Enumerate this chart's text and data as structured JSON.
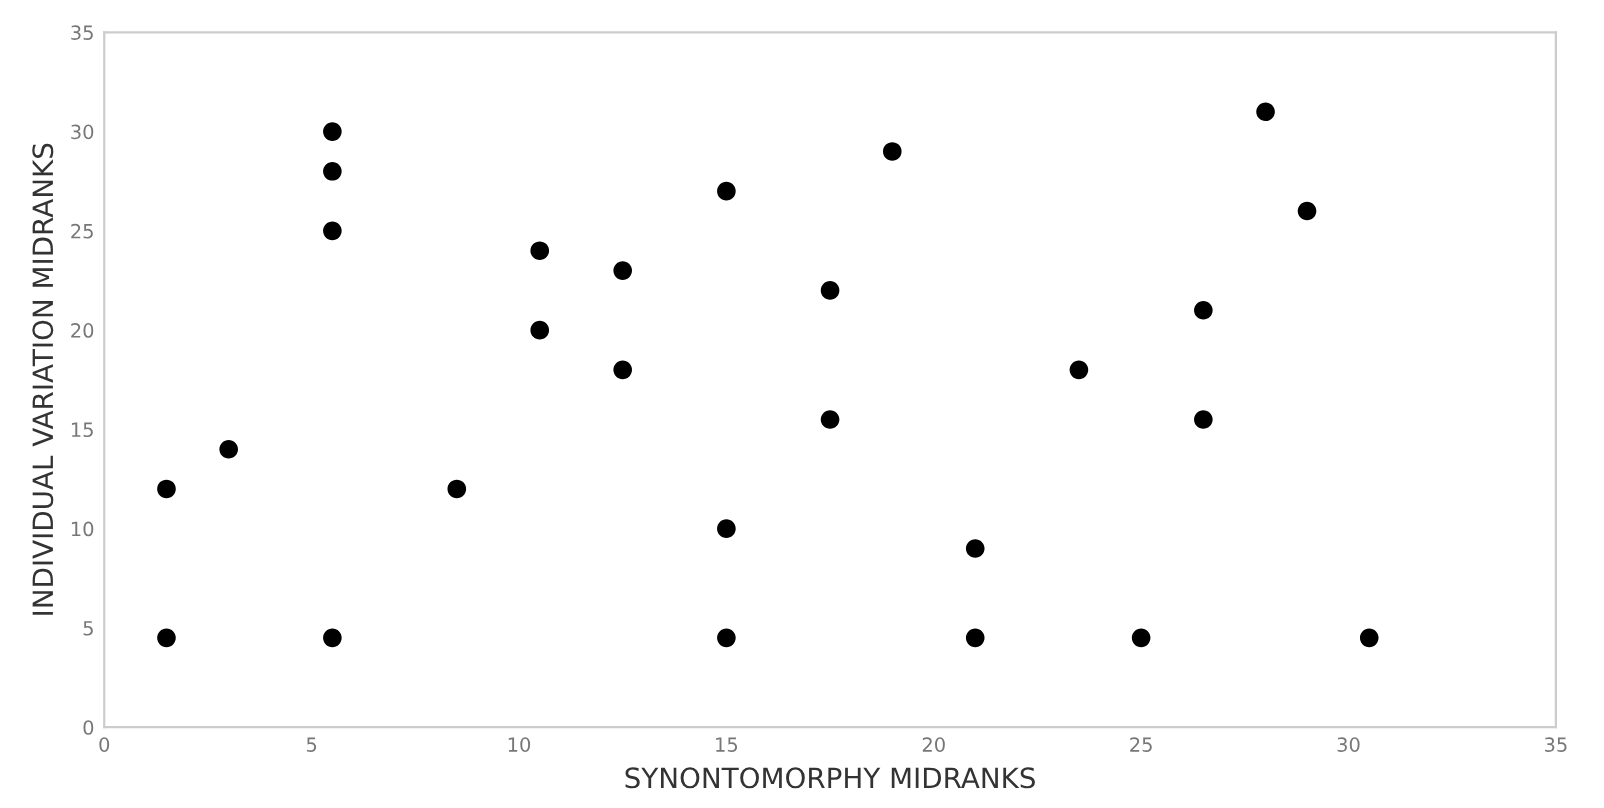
{
  "chart_data": {
    "type": "scatter",
    "xlabel": "SYNONTOMORPHY MIDRANKS",
    "ylabel": "INDIVIDUAL VARIATION MIDRANKS",
    "x": [
      1.5,
      5.5,
      1.5,
      3,
      5.5,
      5.5,
      5.5,
      8.5,
      10.5,
      10.5,
      12.5,
      12.5,
      15,
      15,
      15,
      17.5,
      17.5,
      19,
      21,
      21,
      23.5,
      25,
      26.5,
      26.5,
      28,
      29,
      30.5
    ],
    "series": [
      {
        "color": "#000000",
        "values": [
          4.5,
          4.5,
          12,
          14,
          25,
          28,
          30,
          12,
          24,
          20,
          23,
          18,
          27,
          10,
          4.5,
          22,
          15.5,
          29,
          9,
          4.5,
          18,
          4.5,
          21,
          15.5,
          31,
          26,
          4.5
        ]
      }
    ],
    "xlim": [
      0,
      35
    ],
    "xticks": [
      0,
      5,
      10,
      15,
      20,
      25,
      30,
      35
    ],
    "ylim": [
      0,
      35
    ],
    "yticks": [
      0,
      5,
      10,
      15,
      20,
      25,
      30,
      35
    ],
    "marker": "circle",
    "grid": false,
    "legend": false
  }
}
